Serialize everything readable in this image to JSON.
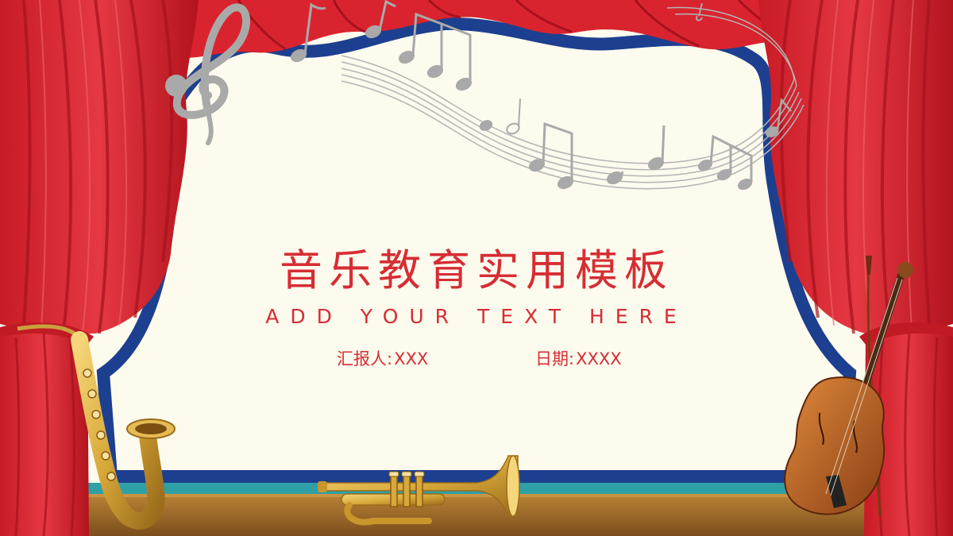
{
  "slide": {
    "title": "音乐教育实用模板",
    "subtitle": "ADD YOUR TEXT HERE",
    "reporter_label": "汇报人:",
    "reporter_value": "XXX",
    "date_label": "日期:",
    "date_value": "XXXX"
  },
  "colors": {
    "background": "#fdfbee",
    "curtain_red": "#d9242f",
    "curtain_dark": "#a5121c",
    "border_blue": "#1d3f8f",
    "stage_teal": "#2fa0a6",
    "floor_brown": "#9a6a2c",
    "text_red": "#d62d34",
    "notes_gray": "#a9a9a9",
    "brass_gold": "#d8a93a"
  },
  "icons": {
    "treble_clef": "treble-clef-icon",
    "music_notes": "music-notes-icon",
    "saxophone": "saxophone-icon",
    "trumpet": "trumpet-icon",
    "violin": "violin-icon"
  }
}
